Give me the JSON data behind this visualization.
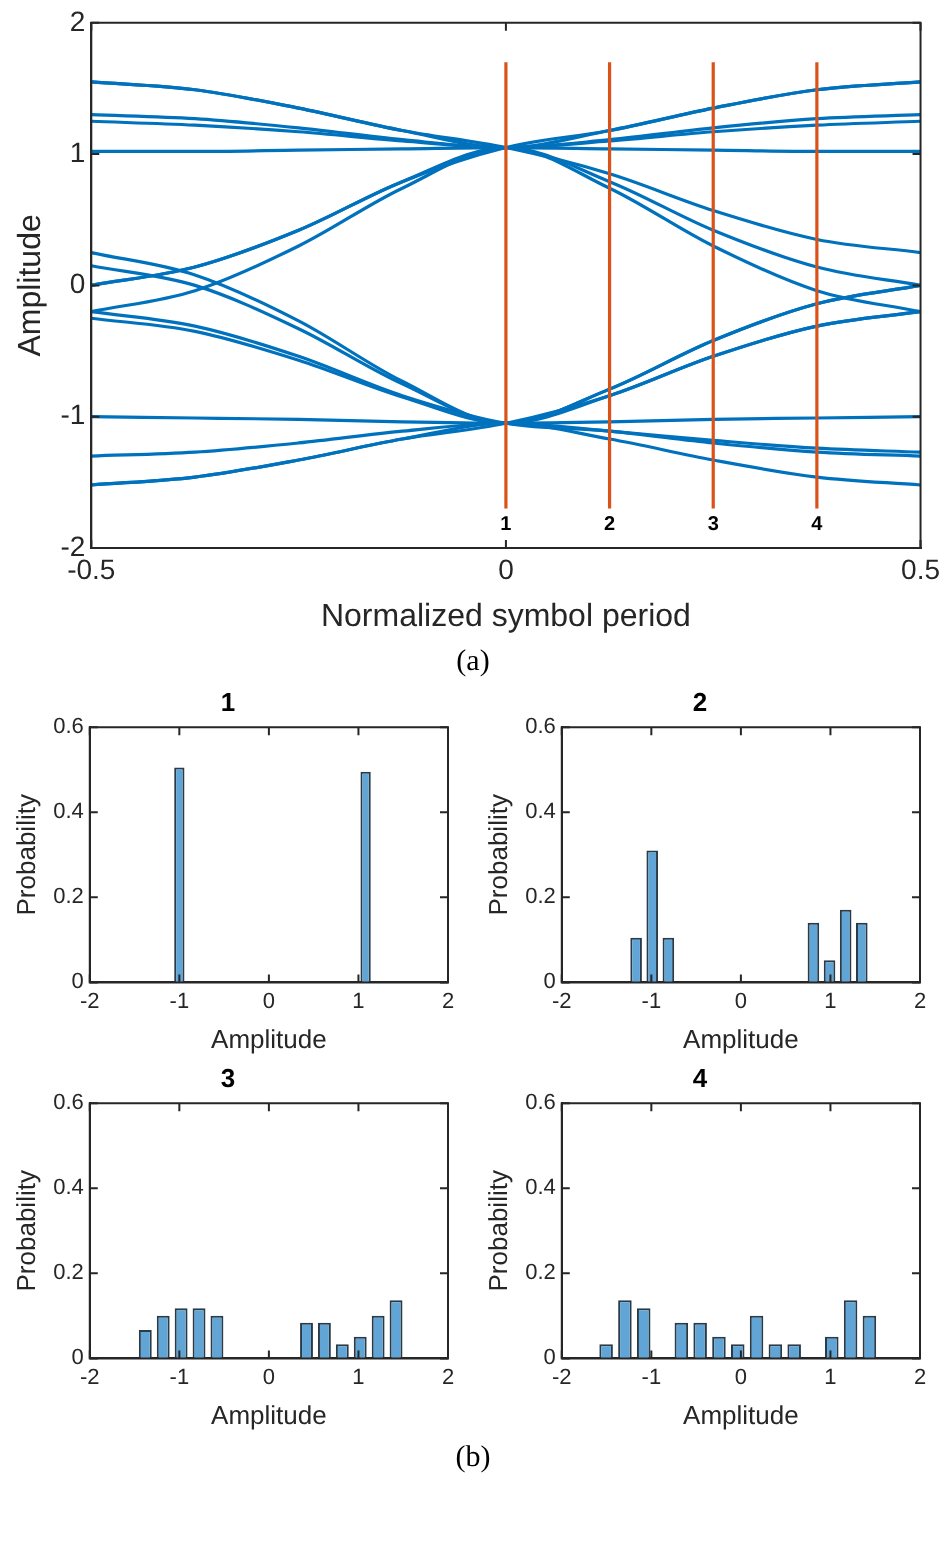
{
  "chart_data": [
    {
      "type": "line",
      "xlabel": "Normalized symbol period",
      "ylabel": "Amplitude",
      "xlim": [
        -0.5,
        0.5
      ],
      "xticks": [
        -0.5,
        0,
        0.5
      ],
      "ylim": [
        -2,
        2
      ],
      "yticks": [
        -2,
        -1,
        0,
        1,
        2
      ],
      "grid": false,
      "marker": "none",
      "x": [
        -0.5,
        -0.375,
        -0.25,
        -0.125,
        0,
        0.125,
        0.25,
        0.375,
        0.5
      ],
      "series": [
        {
          "color": "#0072bd",
          "values": [
            1.55,
            1.49,
            1.35,
            1.18,
            1.05,
            1.18,
            1.35,
            1.49,
            1.55
          ]
        },
        {
          "color": "#0072bd",
          "values": [
            1.3,
            1.27,
            1.2,
            1.11,
            1.05,
            1.1,
            1.17,
            1.22,
            1.25
          ]
        },
        {
          "color": "#0072bd",
          "values": [
            1.25,
            1.22,
            1.17,
            1.1,
            1.05,
            1.11,
            1.2,
            1.27,
            1.3
          ]
        },
        {
          "color": "#0072bd",
          "values": [
            1.02,
            1.02,
            1.03,
            1.04,
            1.05,
            1.04,
            1.03,
            1.02,
            1.02
          ]
        },
        {
          "color": "#0072bd",
          "values": [
            0,
            0.14,
            0.42,
            0.79,
            1.05,
            0.74,
            0.3,
            -0.04,
            -0.2
          ]
        },
        {
          "color": "#0072bd",
          "values": [
            -0.2,
            -0.04,
            0.3,
            0.74,
            1.05,
            0.79,
            0.42,
            0.14,
            0
          ]
        },
        {
          "color": "#0072bd",
          "values": [
            1.55,
            1.49,
            1.35,
            1.18,
            1.05,
            0.85,
            0.57,
            0.35,
            0.25
          ]
        },
        {
          "color": "#0072bd",
          "values": [
            0,
            0.14,
            0.42,
            0.79,
            1.05,
            1.18,
            1.35,
            1.49,
            1.55
          ]
        },
        {
          "color": "#0072bd",
          "values": [
            -1.52,
            -1.46,
            -1.33,
            -1.17,
            -1.05,
            -1.17,
            -1.33,
            -1.46,
            -1.52
          ]
        },
        {
          "color": "#0072bd",
          "values": [
            -1.3,
            -1.27,
            -1.2,
            -1.11,
            -1.05,
            -1.11,
            -1.18,
            -1.24,
            -1.27
          ]
        },
        {
          "color": "#0072bd",
          "values": [
            -1,
            -1.01,
            -1.02,
            -1.04,
            -1.05,
            -1.04,
            -1.02,
            -1.01,
            -1
          ]
        },
        {
          "color": "#0072bd",
          "values": [
            0.25,
            0.08,
            -0.27,
            -0.73,
            -1.05,
            -0.79,
            -0.42,
            -0.14,
            0
          ]
        },
        {
          "color": "#0072bd",
          "values": [
            0.15,
            0,
            -0.33,
            -0.75,
            -1.05,
            -0.84,
            -0.54,
            -0.31,
            -0.2
          ]
        },
        {
          "color": "#0072bd",
          "values": [
            -0.25,
            -0.35,
            -0.57,
            -0.85,
            -1.05,
            -0.79,
            -0.42,
            -0.14,
            0
          ]
        },
        {
          "color": "#0072bd",
          "values": [
            -1.52,
            -1.46,
            -1.33,
            -1.17,
            -1.05,
            -0.84,
            -0.54,
            -0.31,
            -0.2
          ]
        },
        {
          "color": "#0072bd",
          "values": [
            -0.2,
            -0.31,
            -0.54,
            -0.84,
            -1.05,
            -1.11,
            -1.2,
            -1.27,
            -1.3
          ]
        }
      ],
      "ref_lines": [
        {
          "axis": "x",
          "value": 0,
          "color": "#d95319"
        },
        {
          "axis": "x",
          "value": 0.125,
          "color": "#d95319"
        },
        {
          "axis": "x",
          "value": 0.25,
          "color": "#d95319"
        },
        {
          "axis": "x",
          "value": 0.375,
          "color": "#d95319"
        }
      ],
      "annotations": [
        "1",
        "2",
        "3",
        "4",
        "(a)"
      ]
    },
    {
      "type": "histogram",
      "title": "1",
      "xlabel": "Amplitude",
      "ylabel": "Probability",
      "xlim": [
        -2,
        2
      ],
      "xticks": [
        -2,
        -1,
        0,
        1,
        2
      ],
      "ylim": [
        0,
        0.6
      ],
      "yticks": [
        0,
        0.2,
        0.4,
        0.6
      ],
      "color": "#61a5d6",
      "bins": [
        -1.08,
        -0.92,
        -0.76,
        -0.6,
        -0.44,
        -0.28,
        -0.12,
        0.04,
        0.2,
        0.36,
        0.52,
        0.68,
        0.84,
        1.0,
        1.16
      ],
      "values": [
        0.505,
        0,
        0,
        0,
        0,
        0,
        0,
        0,
        0,
        0,
        0,
        0,
        0,
        0.495
      ]
    },
    {
      "type": "histogram",
      "title": "2",
      "xlabel": "Amplitude",
      "ylabel": "Probability",
      "xlim": [
        -2,
        2
      ],
      "xticks": [
        -2,
        -1,
        0,
        1,
        2
      ],
      "ylim": [
        0,
        0.6
      ],
      "yticks": [
        0,
        0.2,
        0.4,
        0.6
      ],
      "color": "#61a5d6",
      "bins": [
        -1.26,
        -1.08,
        -0.9,
        -0.72,
        -0.54,
        -0.36,
        -0.18,
        0,
        0.18,
        0.36,
        0.54,
        0.72,
        0.9,
        1.08,
        1.26,
        1.44
      ],
      "values": [
        0.105,
        0.31,
        0.105,
        0,
        0,
        0,
        0,
        0,
        0,
        0,
        0,
        0.14,
        0.052,
        0.171,
        0.14
      ]
    },
    {
      "type": "histogram",
      "title": "3",
      "xlabel": "Amplitude",
      "ylabel": "Probability",
      "xlim": [
        -2,
        2
      ],
      "xticks": [
        -2,
        -1,
        0,
        1,
        2
      ],
      "ylim": [
        0,
        0.6
      ],
      "yticks": [
        0,
        0.2,
        0.4,
        0.6
      ],
      "color": "#61a5d6",
      "bins": [
        -1.48,
        -1.28,
        -1.08,
        -0.88,
        -0.68,
        -0.48,
        -0.28,
        -0.08,
        0.12,
        0.32,
        0.52,
        0.72,
        0.92,
        1.12,
        1.32,
        1.52
      ],
      "values": [
        0.067,
        0.1,
        0.118,
        0.118,
        0.1,
        0,
        0,
        0,
        0,
        0.084,
        0.084,
        0.033,
        0.051,
        0.1,
        0.137
      ]
    },
    {
      "type": "histogram",
      "title": "4",
      "xlabel": "Amplitude",
      "ylabel": "Probability",
      "xlim": [
        -2,
        2
      ],
      "xticks": [
        -2,
        -1,
        0,
        1,
        2
      ],
      "ylim": [
        0,
        0.6
      ],
      "yticks": [
        0,
        0.2,
        0.4,
        0.6
      ],
      "color": "#61a5d6",
      "bins": [
        -1.61,
        -1.4,
        -1.19,
        -0.98,
        -0.77,
        -0.56,
        -0.35,
        -0.14,
        0.07,
        0.28,
        0.49,
        0.7,
        0.91,
        1.12,
        1.33,
        1.54
      ],
      "values": [
        0.033,
        0.137,
        0.118,
        0,
        0.084,
        0.084,
        0.051,
        0.033,
        0.1,
        0.033,
        0.033,
        0,
        0.051,
        0.137,
        0.1
      ],
      "annotations": [
        "(b)"
      ]
    }
  ]
}
